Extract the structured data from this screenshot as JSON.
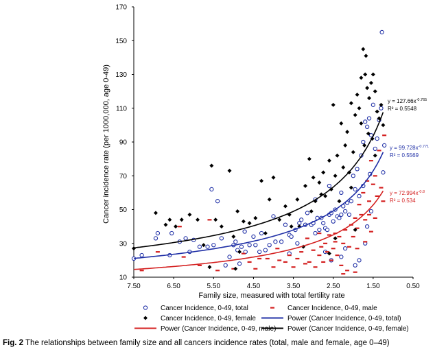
{
  "chart_data": {
    "type": "scatter",
    "xlabel": "Family size,  measured with total fertility rate",
    "ylabel": "Cancer incidence rate (per 1000,000, age 0-49)",
    "x_reversed": true,
    "xlim": [
      7.5,
      0.5
    ],
    "ylim": [
      10,
      170
    ],
    "x_ticks": [
      "7.50",
      "6.50",
      "5.50",
      "4.50",
      "3.50",
      "2.50",
      "1.50",
      "0.50"
    ],
    "y_ticks": [
      "10",
      "30",
      "50",
      "70",
      "90",
      "110",
      "130",
      "150",
      "170"
    ],
    "series": [
      {
        "name": "Cancer Incidence, 0-49, total",
        "marker": "open-circle",
        "color": "#1f2fa6",
        "points": [
          [
            7.5,
            21
          ],
          [
            7.3,
            23
          ],
          [
            6.95,
            33
          ],
          [
            6.9,
            36
          ],
          [
            6.6,
            23
          ],
          [
            6.55,
            36
          ],
          [
            6.35,
            31
          ],
          [
            6.2,
            33
          ],
          [
            6.0,
            32
          ],
          [
            5.85,
            28
          ],
          [
            5.65,
            28
          ],
          [
            5.55,
            62
          ],
          [
            5.4,
            55
          ],
          [
            5.3,
            33
          ],
          [
            5.2,
            17
          ],
          [
            5.1,
            22
          ],
          [
            5.0,
            29
          ],
          [
            4.95,
            31
          ],
          [
            4.9,
            26
          ],
          [
            4.8,
            28
          ],
          [
            4.72,
            37
          ],
          [
            4.7,
            25
          ],
          [
            4.6,
            29
          ],
          [
            4.5,
            34
          ],
          [
            4.45,
            29
          ],
          [
            4.35,
            25
          ],
          [
            4.3,
            36
          ],
          [
            4.1,
            29
          ],
          [
            4.0,
            46
          ],
          [
            3.95,
            31
          ],
          [
            3.8,
            31
          ],
          [
            3.7,
            41
          ],
          [
            3.6,
            35
          ],
          [
            3.55,
            34
          ],
          [
            3.45,
            38
          ],
          [
            3.4,
            30
          ],
          [
            3.35,
            42
          ],
          [
            3.3,
            44
          ],
          [
            3.2,
            41
          ],
          [
            3.15,
            48
          ],
          [
            3.05,
            41
          ],
          [
            3.0,
            42
          ],
          [
            2.95,
            36
          ],
          [
            2.9,
            45
          ],
          [
            2.85,
            38
          ],
          [
            2.8,
            45
          ],
          [
            2.75,
            42
          ],
          [
            2.7,
            39
          ],
          [
            2.65,
            38
          ],
          [
            2.6,
            47
          ],
          [
            2.55,
            48
          ],
          [
            2.5,
            43
          ],
          [
            2.45,
            50
          ],
          [
            2.4,
            46
          ],
          [
            2.35,
            45
          ],
          [
            2.3,
            47
          ],
          [
            2.25,
            52
          ],
          [
            2.2,
            49
          ],
          [
            2.15,
            54
          ],
          [
            2.1,
            47
          ],
          [
            2.05,
            55
          ],
          [
            2.0,
            70
          ],
          [
            1.95,
            62
          ],
          [
            1.9,
            74
          ],
          [
            1.85,
            58
          ],
          [
            1.8,
            82
          ],
          [
            1.75,
            90
          ],
          [
            1.7,
            102
          ],
          [
            1.65,
            99
          ],
          [
            1.6,
            104
          ],
          [
            1.55,
            94
          ],
          [
            1.5,
            112
          ],
          [
            1.45,
            86
          ],
          [
            1.4,
            92
          ],
          [
            1.35,
            103
          ],
          [
            1.3,
            110
          ],
          [
            1.28,
            155
          ],
          [
            1.25,
            72
          ],
          [
            1.22,
            88
          ],
          [
            2.7,
            25
          ],
          [
            2.55,
            20
          ],
          [
            2.3,
            22
          ],
          [
            2.2,
            27
          ],
          [
            1.95,
            17
          ],
          [
            1.85,
            20
          ],
          [
            1.7,
            30
          ],
          [
            1.65,
            40
          ],
          [
            1.55,
            49
          ],
          [
            3.6,
            24
          ],
          [
            4.2,
            26
          ],
          [
            4.85,
            18
          ],
          [
            5.5,
            29
          ],
          [
            6.1,
            25
          ],
          [
            2.95,
            56
          ],
          [
            2.6,
            64
          ],
          [
            2.3,
            60
          ],
          [
            1.75,
            64
          ],
          [
            1.58,
            71
          ]
        ]
      },
      {
        "name": "Cancer Incidence, 0-49, male",
        "marker": "dash",
        "color": "#d42020",
        "points": [
          [
            7.3,
            14
          ],
          [
            6.9,
            25
          ],
          [
            6.25,
            22
          ],
          [
            5.85,
            17
          ],
          [
            5.4,
            14
          ],
          [
            5.0,
            15
          ],
          [
            4.75,
            24
          ],
          [
            4.6,
            19
          ],
          [
            4.35,
            21
          ],
          [
            4.15,
            21
          ],
          [
            4.0,
            16
          ],
          [
            3.85,
            20
          ],
          [
            3.7,
            19
          ],
          [
            3.6,
            23
          ],
          [
            3.5,
            16
          ],
          [
            3.4,
            21
          ],
          [
            3.3,
            25
          ],
          [
            3.2,
            18
          ],
          [
            3.1,
            19
          ],
          [
            3.0,
            26
          ],
          [
            2.95,
            16
          ],
          [
            2.85,
            23
          ],
          [
            2.8,
            28
          ],
          [
            2.75,
            19
          ],
          [
            2.7,
            30
          ],
          [
            2.65,
            25
          ],
          [
            2.6,
            35
          ],
          [
            2.55,
            20
          ],
          [
            2.5,
            27
          ],
          [
            2.45,
            36
          ],
          [
            2.4,
            23
          ],
          [
            2.35,
            34
          ],
          [
            2.3,
            17
          ],
          [
            2.25,
            30
          ],
          [
            2.2,
            38
          ],
          [
            2.15,
            14
          ],
          [
            2.1,
            28
          ],
          [
            2.05,
            41
          ],
          [
            2.0,
            34
          ],
          [
            1.95,
            45
          ],
          [
            1.9,
            39
          ],
          [
            1.85,
            53
          ],
          [
            1.8,
            47
          ],
          [
            1.75,
            60
          ],
          [
            1.7,
            44
          ],
          [
            1.65,
            67
          ],
          [
            1.6,
            55
          ],
          [
            1.55,
            79
          ],
          [
            1.5,
            65
          ],
          [
            1.45,
            70
          ],
          [
            1.4,
            58
          ],
          [
            1.35,
            85
          ],
          [
            1.3,
            63
          ],
          [
            1.25,
            55
          ],
          [
            1.22,
            94
          ],
          [
            1.6,
            47
          ],
          [
            1.45,
            45
          ],
          [
            2.25,
            12
          ],
          [
            1.95,
            13
          ],
          [
            3.9,
            27
          ],
          [
            4.45,
            15
          ],
          [
            5.6,
            44
          ],
          [
            6.35,
            40
          ],
          [
            3.15,
            33
          ],
          [
            2.85,
            36
          ],
          [
            2.45,
            31
          ],
          [
            1.9,
            27
          ],
          [
            1.7,
            31
          ],
          [
            1.55,
            37
          ]
        ]
      },
      {
        "name": "Cancer Incidence, 0-49, female",
        "marker": "diamond",
        "color": "#000000",
        "points": [
          [
            7.5,
            27
          ],
          [
            6.95,
            48
          ],
          [
            6.6,
            44
          ],
          [
            6.45,
            40
          ],
          [
            6.3,
            44
          ],
          [
            6.1,
            47
          ],
          [
            5.9,
            44
          ],
          [
            5.75,
            29
          ],
          [
            5.55,
            76
          ],
          [
            5.45,
            44
          ],
          [
            5.3,
            40
          ],
          [
            5.1,
            73
          ],
          [
            5.0,
            34
          ],
          [
            4.9,
            49
          ],
          [
            4.75,
            43
          ],
          [
            4.6,
            42
          ],
          [
            4.45,
            45
          ],
          [
            4.3,
            67
          ],
          [
            4.2,
            36
          ],
          [
            4.1,
            56
          ],
          [
            4.0,
            69
          ],
          [
            3.85,
            44
          ],
          [
            3.7,
            52
          ],
          [
            3.6,
            47
          ],
          [
            3.55,
            40
          ],
          [
            3.4,
            56
          ],
          [
            3.35,
            40
          ],
          [
            3.2,
            64
          ],
          [
            3.1,
            80
          ],
          [
            3.05,
            49
          ],
          [
            3.0,
            69
          ],
          [
            2.95,
            55
          ],
          [
            2.85,
            66
          ],
          [
            2.8,
            59
          ],
          [
            2.75,
            72
          ],
          [
            2.7,
            58
          ],
          [
            2.6,
            79
          ],
          [
            2.55,
            62
          ],
          [
            2.5,
            112
          ],
          [
            2.45,
            70
          ],
          [
            2.4,
            82
          ],
          [
            2.3,
            101
          ],
          [
            2.25,
            75
          ],
          [
            2.2,
            88
          ],
          [
            2.15,
            96
          ],
          [
            2.1,
            72
          ],
          [
            2.05,
            113
          ],
          [
            2.0,
            84
          ],
          [
            1.95,
            106
          ],
          [
            1.9,
            118
          ],
          [
            1.85,
            110
          ],
          [
            1.8,
            128
          ],
          [
            1.75,
            145
          ],
          [
            1.7,
            130
          ],
          [
            1.68,
            141
          ],
          [
            1.65,
            122
          ],
          [
            1.6,
            116
          ],
          [
            1.55,
            125
          ],
          [
            1.5,
            130
          ],
          [
            1.45,
            120
          ],
          [
            1.4,
            108
          ],
          [
            1.35,
            104
          ],
          [
            1.3,
            112
          ],
          [
            1.25,
            100
          ],
          [
            1.8,
            101
          ],
          [
            1.62,
            95
          ],
          [
            1.52,
            92
          ],
          [
            2.35,
            55
          ],
          [
            2.05,
            63
          ],
          [
            1.95,
            38
          ],
          [
            2.45,
            33
          ],
          [
            2.6,
            24
          ],
          [
            3.25,
            28
          ],
          [
            4.85,
            25
          ],
          [
            4.95,
            15
          ],
          [
            5.6,
            16
          ],
          [
            6.7,
            41
          ],
          [
            1.45,
            82
          ],
          [
            1.72,
            88
          ]
        ]
      }
    ],
    "fits": [
      {
        "name": "Power (Cancer Incidence, 0-49, total)",
        "color": "#1f2fa6",
        "a": 99.728,
        "b": -0.771,
        "equation": "y = 99.728x",
        "exponent": "-0.771",
        "r2_label": "R² = 0.5569"
      },
      {
        "name": "Power (Cancer Incidence, 0-49, male)",
        "color": "#d42020",
        "a": 72.994,
        "b": -0.8,
        "equation": "y = 72.994x",
        "exponent": "-0.8",
        "r2_label": "R² = 0.534"
      },
      {
        "name": "Power (Cancer Incidence, 0-49, female)",
        "color": "#000000",
        "a": 127.66,
        "b": -0.765,
        "equation": "y = 127.66x",
        "exponent": "-0.765",
        "r2_label": "R² = 0.5548"
      }
    ],
    "legend_position": "bottom"
  },
  "caption": {
    "label": "Fig. 2",
    "text": " The relationships between family size and all cancers incidence rates (total, male and female, age 0–49)"
  }
}
